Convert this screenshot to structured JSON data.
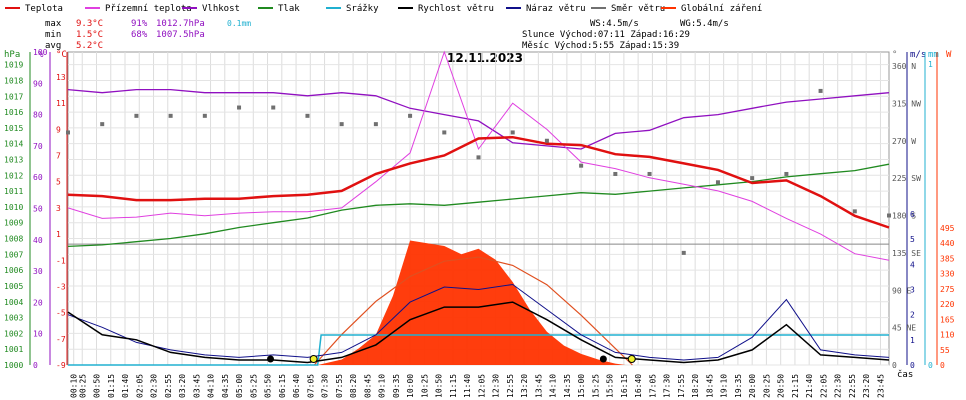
{
  "chart_data": {
    "type": "line",
    "title": "12.11.2023",
    "legend": [
      {
        "label": "Teplota",
        "color": "#e01010"
      },
      {
        "label": "Přízemní teplota",
        "color": "#e040e0"
      },
      {
        "label": "Vlhkost",
        "color": "#9010c0"
      },
      {
        "label": "Tlak",
        "color": "#208a20"
      },
      {
        "label": "Srážky",
        "color": "#20b0d0"
      },
      {
        "label": "Rychlost větru",
        "color": "#000000"
      },
      {
        "label": "Náraz větru",
        "color": "#10108a"
      },
      {
        "label": "Směr větru",
        "color": "#707070"
      },
      {
        "label": "Globální záření",
        "color": "#ff3300"
      }
    ],
    "stats": {
      "max": {
        "label": "max",
        "temp": "9.3°C",
        "hum": "91%",
        "press": "1012.7hPa",
        "rain": "0.1mm"
      },
      "min": {
        "label": "min",
        "temp": "1.5°C",
        "hum": "68%",
        "press": "1007.5hPa"
      },
      "avg": {
        "label": "avg",
        "temp": "5.2°C"
      }
    },
    "info": {
      "ws": "WS:4.5m/s",
      "wg": "WG:5.4m/s",
      "sun": "Slunce Východ:07:11  Západ:16:29",
      "moon": "Měsíc  Východ:5:55  Západ:15:39"
    },
    "axes": {
      "hpa_label": "hPa",
      "pct_label": "%",
      "degc_label": "°C",
      "deg_label": "°",
      "ms_label": "m/s",
      "mm_label": "mm",
      "w_label": "W",
      "x_label": "čas",
      "hpa_ticks": [
        "1019",
        "1018",
        "1017",
        "1016",
        "1015",
        "1014",
        "1013",
        "1012",
        "1011",
        "1010",
        "1009",
        "1008",
        "1007",
        "1006",
        "1005",
        "1004",
        "1003",
        "1002",
        "1001",
        "1000"
      ],
      "pct_ticks": [
        "100",
        "90",
        "80",
        "70",
        "60",
        "50",
        "40",
        "30",
        "20",
        "10",
        "0"
      ],
      "degc_ticks": [
        "13",
        "11",
        "9",
        "7",
        "5",
        "3",
        "1",
        "-1",
        "-3",
        "-5",
        "-7",
        "-9"
      ],
      "dir_ticks": [
        "360 N",
        "315 NW",
        "270 W",
        "225 SW",
        "180 S",
        "135 SE",
        "90 E",
        "45 NE",
        "0"
      ],
      "ms_ticks": [
        "6",
        "5",
        "4",
        "3",
        "2",
        "1",
        "0"
      ],
      "mm_ticks": [
        "1",
        "0"
      ],
      "w_ticks": [
        "495",
        "440",
        "385",
        "330",
        "275",
        "220",
        "165",
        "110",
        "55",
        "0"
      ],
      "time_ticks": [
        "00:10",
        "00:25",
        "00:50",
        "01:15",
        "01:40",
        "02:05",
        "02:30",
        "02:55",
        "03:20",
        "03:45",
        "04:10",
        "04:35",
        "05:00",
        "05:25",
        "05:50",
        "06:15",
        "06:40",
        "07:05",
        "07:30",
        "07:55",
        "08:20",
        "08:45",
        "09:10",
        "09:35",
        "10:00",
        "10:25",
        "10:50",
        "11:15",
        "11:40",
        "12:05",
        "12:30",
        "12:55",
        "13:20",
        "13:45",
        "14:10",
        "14:35",
        "15:00",
        "15:25",
        "15:50",
        "16:15",
        "16:40",
        "17:05",
        "17:30",
        "17:55",
        "18:20",
        "18:45",
        "19:10",
        "19:35",
        "20:00",
        "20:25",
        "20:50",
        "21:15",
        "21:40",
        "22:05",
        "22:30",
        "22:55",
        "23:20",
        "23:45"
      ]
    },
    "series": [
      {
        "name": "Teplota",
        "unit": "°C",
        "x_hours": [
          0,
          1,
          2,
          3,
          4,
          5,
          6,
          7,
          8,
          9,
          10,
          11,
          12,
          13,
          14,
          15,
          16,
          17,
          18,
          19,
          20,
          21,
          22,
          23,
          24
        ],
        "values": [
          4.0,
          3.9,
          3.6,
          3.6,
          3.7,
          3.7,
          3.9,
          4.0,
          4.3,
          5.6,
          6.4,
          7.0,
          8.3,
          8.4,
          7.9,
          7.8,
          7.1,
          6.9,
          6.4,
          5.9,
          4.9,
          5.1,
          3.9,
          2.4,
          1.5
        ]
      },
      {
        "name": "Přízemní teplota",
        "unit": "°C",
        "x_hours": [
          0,
          1,
          2,
          3,
          4,
          5,
          6,
          7,
          8,
          9,
          10,
          11,
          12,
          13,
          14,
          15,
          16,
          17,
          18,
          19,
          20,
          21,
          22,
          23,
          24
        ],
        "values": [
          3.0,
          2.2,
          2.3,
          2.6,
          2.4,
          2.6,
          2.7,
          2.7,
          3.0,
          5.0,
          7.2,
          16.0,
          7.5,
          11.0,
          9.0,
          6.5,
          6.0,
          5.3,
          4.8,
          4.3,
          3.5,
          2.2,
          1.0,
          -0.5,
          -1.0
        ]
      },
      {
        "name": "Vlhkost",
        "unit": "%",
        "x_hours": [
          0,
          1,
          2,
          3,
          4,
          5,
          6,
          7,
          8,
          9,
          10,
          11,
          12,
          13,
          14,
          15,
          16,
          17,
          18,
          19,
          20,
          21,
          22,
          23,
          24
        ],
        "values": [
          88,
          87,
          88,
          88,
          87,
          87,
          87,
          86,
          87,
          86,
          82,
          80,
          78,
          71,
          70,
          69,
          74,
          75,
          79,
          80,
          82,
          84,
          85,
          86,
          87
        ]
      },
      {
        "name": "Tlak",
        "unit": "hPa",
        "x_hours": [
          0,
          1,
          2,
          3,
          4,
          5,
          6,
          7,
          8,
          9,
          10,
          11,
          12,
          13,
          14,
          15,
          16,
          17,
          18,
          19,
          20,
          21,
          22,
          23,
          24
        ],
        "values": [
          1007.5,
          1007.6,
          1007.8,
          1008.0,
          1008.3,
          1008.7,
          1009.0,
          1009.3,
          1009.8,
          1010.1,
          1010.2,
          1010.1,
          1010.3,
          1010.5,
          1010.7,
          1010.9,
          1010.8,
          1011.0,
          1011.2,
          1011.4,
          1011.6,
          1011.9,
          1012.1,
          1012.3,
          1012.7
        ]
      },
      {
        "name": "Srážky",
        "unit": "mm",
        "x_hours": [
          0,
          7.3,
          7.4,
          24
        ],
        "values": [
          0,
          0,
          0.1,
          0.1
        ]
      },
      {
        "name": "Rychlost větru",
        "unit": "m/s",
        "x_hours": [
          0,
          1,
          2,
          3,
          4,
          5,
          6,
          7,
          8,
          9,
          10,
          11,
          12,
          13,
          14,
          15,
          16,
          17,
          18,
          19,
          20,
          21,
          22,
          23,
          24
        ],
        "values": [
          2.1,
          1.2,
          1.0,
          0.5,
          0.3,
          0.2,
          0.2,
          0.1,
          0.3,
          0.8,
          1.8,
          2.3,
          2.3,
          2.5,
          1.8,
          1.0,
          0.3,
          0.2,
          0.1,
          0.2,
          0.6,
          1.6,
          0.4,
          0.3,
          0.2
        ]
      },
      {
        "name": "Náraz větru",
        "unit": "m/s",
        "x_hours": [
          0,
          1,
          2,
          3,
          4,
          5,
          6,
          7,
          8,
          9,
          10,
          11,
          12,
          13,
          14,
          15,
          16,
          17,
          18,
          19,
          20,
          21,
          22,
          23,
          24
        ],
        "values": [
          2.0,
          1.5,
          0.9,
          0.6,
          0.4,
          0.3,
          0.4,
          0.3,
          0.5,
          1.2,
          2.5,
          3.1,
          3.0,
          3.2,
          2.2,
          1.2,
          0.5,
          0.3,
          0.2,
          0.3,
          1.1,
          2.6,
          0.6,
          0.4,
          0.3
        ]
      },
      {
        "name": "Směr větru",
        "unit": "°",
        "x_hours": [
          0,
          1,
          2,
          3,
          4,
          5,
          6,
          7,
          8,
          9,
          10,
          11,
          12,
          13,
          14,
          15,
          16,
          17,
          18,
          19,
          20,
          21,
          22,
          23,
          24
        ],
        "values": [
          280,
          290,
          300,
          300,
          300,
          310,
          310,
          300,
          290,
          290,
          300,
          280,
          250,
          280,
          270,
          240,
          230,
          230,
          135,
          220,
          225,
          230,
          330,
          185,
          180
        ]
      },
      {
        "name": "Globální záření",
        "unit": "W",
        "x_hours": [
          7.3,
          8,
          8.5,
          9,
          9.5,
          10,
          10.5,
          11,
          11.5,
          12,
          12.5,
          13,
          13.5,
          14,
          14.5,
          15,
          15.5,
          16,
          16.3
        ],
        "values": [
          0,
          20,
          60,
          110,
          250,
          450,
          440,
          430,
          400,
          420,
          380,
          300,
          200,
          120,
          70,
          40,
          20,
          5,
          0
        ]
      }
    ],
    "clear_sky": {
      "name": "clear-sky",
      "x_hours": [
        7.2,
        8,
        9,
        10,
        11,
        12,
        13,
        14,
        15,
        16,
        16.5
      ],
      "values": [
        0,
        110,
        230,
        320,
        375,
        390,
        360,
        290,
        180,
        60,
        0
      ]
    }
  }
}
